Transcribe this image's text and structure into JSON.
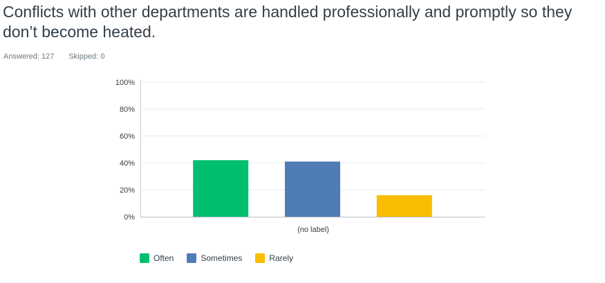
{
  "question": {
    "title": "Conflicts with other departments are handled professionally and promptly so they don’t become heated.",
    "answered": "Answered: 127",
    "skipped": "Skipped: 0"
  },
  "chart_data": {
    "type": "bar",
    "categories": [
      "(no label)"
    ],
    "series": [
      {
        "name": "Often",
        "values": [
          42
        ],
        "color": "#00bf6f"
      },
      {
        "name": "Sometimes",
        "values": [
          41
        ],
        "color": "#507cb6"
      },
      {
        "name": "Rarely",
        "values": [
          16
        ],
        "color": "#f9be00"
      }
    ],
    "yticks": [
      "0%",
      "20%",
      "40%",
      "60%",
      "80%",
      "100%"
    ],
    "ylim": [
      0,
      100
    ],
    "grid": true,
    "legend_position": "bottom-left"
  }
}
